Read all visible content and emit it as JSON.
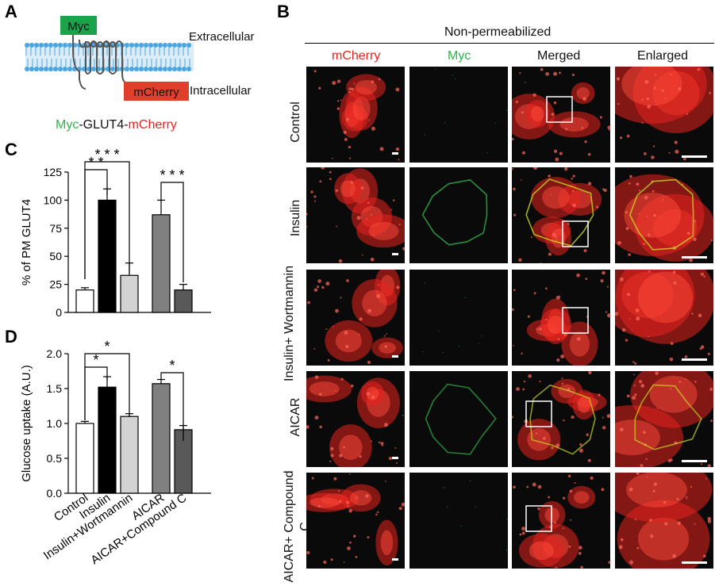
{
  "panels": {
    "a": "A",
    "b": "B",
    "c": "C",
    "d": "D"
  },
  "schematic": {
    "tag_left": "Myc",
    "tag_right": "mCherry",
    "extracellular": "Extracellular",
    "intracellular": "Intracellular",
    "construct": {
      "part1": "Myc",
      "part2": "-GLUT4-",
      "part3": "mCherry"
    }
  },
  "microscopy": {
    "condition_header": "Non-permeabilized",
    "columns": [
      "mCherry",
      "Myc",
      "Merged",
      "Enlarged"
    ],
    "rows": [
      "Control",
      "Insulin",
      "Insulin+ Wortmannin",
      "AICAR",
      "AICAR+ Compound C"
    ],
    "myc_signal": [
      0.0,
      0.8,
      0.0,
      0.7,
      0.0
    ]
  },
  "colors": {
    "red": "#e8231e",
    "green": "#2db34a",
    "myc_box": "#1aa34a",
    "mcherry_box": "#e0402a",
    "membrane": "#4aa6e0"
  },
  "chart_data": [
    {
      "type": "bar",
      "panel": "C",
      "ylabel": "% of PM GLUT4",
      "ylim": [
        0,
        125
      ],
      "yticks": [
        0,
        25,
        50,
        75,
        100,
        125
      ],
      "categories": [
        "Control",
        "Insulin",
        "Insulin+Wortmannin",
        "AICAR",
        "AICAR+Compound C"
      ],
      "values": [
        20,
        100,
        33,
        87,
        20
      ],
      "errors": [
        2,
        10,
        11,
        13,
        5
      ],
      "bar_colors": [
        "#ffffff",
        "#000000",
        "#d3d3d3",
        "#808080",
        "#595959"
      ],
      "significance": [
        {
          "from": 0,
          "to": 1,
          "label": "* *"
        },
        {
          "from": 0,
          "to": 2,
          "label": "* * *"
        },
        {
          "from": 3,
          "to": 4,
          "label": "* * *"
        }
      ]
    },
    {
      "type": "bar",
      "panel": "D",
      "ylabel": "Glucose uptake (A.U.)",
      "ylim": [
        0,
        2.0
      ],
      "yticks": [
        0.0,
        0.5,
        1.0,
        1.5,
        2.0
      ],
      "ytick_labels": [
        "0.0",
        "0.5",
        "1.0",
        "1.5",
        "2.0"
      ],
      "categories": [
        "Control",
        "Insulin",
        "Insulin+Wortmannin",
        "AICAR",
        "AICAR+Compound C"
      ],
      "values": [
        1.0,
        1.52,
        1.1,
        1.57,
        0.91
      ],
      "errors": [
        0.03,
        0.15,
        0.04,
        0.06,
        0.06
      ],
      "bar_colors": [
        "#ffffff",
        "#000000",
        "#d3d3d3",
        "#808080",
        "#595959"
      ],
      "significance": [
        {
          "from": 0,
          "to": 1,
          "label": "*"
        },
        {
          "from": 0,
          "to": 2,
          "label": "*"
        },
        {
          "from": 3,
          "to": 4,
          "label": "*"
        }
      ]
    }
  ]
}
